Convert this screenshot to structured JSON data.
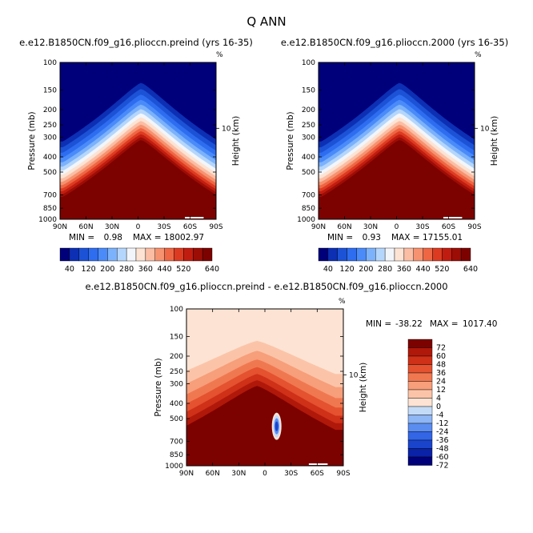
{
  "figure": {
    "title": "Q ANN",
    "colors": {
      "abs_scale": [
        "#00007a",
        "#0c2fb4",
        "#1c52d6",
        "#2e6df0",
        "#4a8bf9",
        "#7cb2fb",
        "#b5d6fc",
        "#f2f6fb",
        "#fde3d3",
        "#fbbda4",
        "#f6926f",
        "#ee6644",
        "#dd3b21",
        "#c01d10",
        "#9c0d06",
        "#7c0200"
      ],
      "diff_scale": [
        "#00007a",
        "#0a22a8",
        "#1a44cc",
        "#3366e6",
        "#5b8df0",
        "#8fb6f5",
        "#c4dbf8",
        "#fde3d3",
        "#fbc4a8",
        "#f79e7a",
        "#f07850",
        "#e45230",
        "#cf3018",
        "#b0180a",
        "#7c0200"
      ]
    },
    "panels": [
      {
        "title": "e.e12.B1850CN.f09_g16.plioccn.preind (yrs 16-35)",
        "min_label": "MIN =",
        "min_value": "0.98",
        "max_label": "MAX =",
        "max_value": "18002.97",
        "top_right_mark": "%"
      },
      {
        "title": "e.e12.B1850CN.f09_g16.plioccn.2000 (yrs 16-35)",
        "min_label": "MIN =",
        "min_value": "0.93",
        "max_label": "MAX =",
        "max_value": "17155.01",
        "top_right_mark": "%"
      },
      {
        "title": "e.e12.B1850CN.f09_g16.plioccn.preind - e.e12.B1850CN.f09_g16.plioccn.2000",
        "min_label": "MIN =",
        "min_value": "-38.22",
        "max_label": "MAX =",
        "max_value": "1017.40",
        "top_right_mark": "%"
      }
    ]
  },
  "chart_data": [
    {
      "type": "heatmap",
      "subtype": "latitude-pressure filled contour",
      "title": "e.e12.B1850CN.f09_g16.plioccn.preind (yrs 16-35)",
      "ylabel": "Pressure (mb)",
      "ylabel_right": "Height (km)",
      "x_ticks": [
        "90N",
        "60N",
        "30N",
        "0",
        "30S",
        "60S",
        "90S"
      ],
      "y_ticks": [
        "100",
        "150",
        "200",
        "250",
        "300",
        "400",
        "500",
        "700",
        "850",
        "1000"
      ],
      "right_ticks": [
        "10"
      ],
      "y_scale": "log",
      "ylim": [
        1000,
        100
      ],
      "contour_levels": [
        40,
        80,
        120,
        160,
        200,
        240,
        280,
        320,
        360,
        400,
        440,
        480,
        520,
        560,
        600,
        640
      ],
      "colorbar_labels": [
        "40",
        "120",
        "200",
        "280",
        "360",
        "440",
        "520",
        "640"
      ],
      "colorbar_orientation": "horizontal",
      "min": 0.98,
      "max": 18002.97
    },
    {
      "type": "heatmap",
      "subtype": "latitude-pressure filled contour",
      "title": "e.e12.B1850CN.f09_g16.plioccn.2000 (yrs 16-35)",
      "ylabel": "Pressure (mb)",
      "ylabel_right": "Height (km)",
      "x_ticks": [
        "90N",
        "60N",
        "30N",
        "0",
        "30S",
        "60S",
        "90S"
      ],
      "y_ticks": [
        "100",
        "150",
        "200",
        "250",
        "300",
        "400",
        "500",
        "700",
        "850",
        "1000"
      ],
      "right_ticks": [
        "10"
      ],
      "y_scale": "log",
      "ylim": [
        1000,
        100
      ],
      "contour_levels": [
        40,
        80,
        120,
        160,
        200,
        240,
        280,
        320,
        360,
        400,
        440,
        480,
        520,
        560,
        600,
        640
      ],
      "colorbar_labels": [
        "40",
        "120",
        "200",
        "280",
        "360",
        "440",
        "520",
        "640"
      ],
      "colorbar_orientation": "horizontal",
      "min": 0.93,
      "max": 17155.01
    },
    {
      "type": "heatmap",
      "subtype": "latitude-pressure filled contour (difference)",
      "title": "e.e12.B1850CN.f09_g16.plioccn.preind - e.e12.B1850CN.f09_g16.plioccn.2000",
      "ylabel": "Pressure (mb)",
      "ylabel_right": "Height (km)",
      "x_ticks": [
        "90N",
        "60N",
        "30N",
        "0",
        "30S",
        "60S",
        "90S"
      ],
      "y_ticks": [
        "100",
        "150",
        "200",
        "250",
        "300",
        "400",
        "500",
        "700",
        "850",
        "1000"
      ],
      "right_ticks": [
        "10"
      ],
      "y_scale": "log",
      "ylim": [
        1000,
        100
      ],
      "contour_levels": [
        -72,
        -60,
        -48,
        -36,
        -24,
        -12,
        -4,
        0,
        4,
        12,
        24,
        36,
        48,
        60,
        72
      ],
      "colorbar_labels": [
        "72",
        "60",
        "48",
        "36",
        "24",
        "12",
        "4",
        "0",
        "-4",
        "-12",
        "-24",
        "-36",
        "-48",
        "-60",
        "-72"
      ],
      "colorbar_orientation": "vertical",
      "min": -38.22,
      "max": 1017.4
    }
  ]
}
